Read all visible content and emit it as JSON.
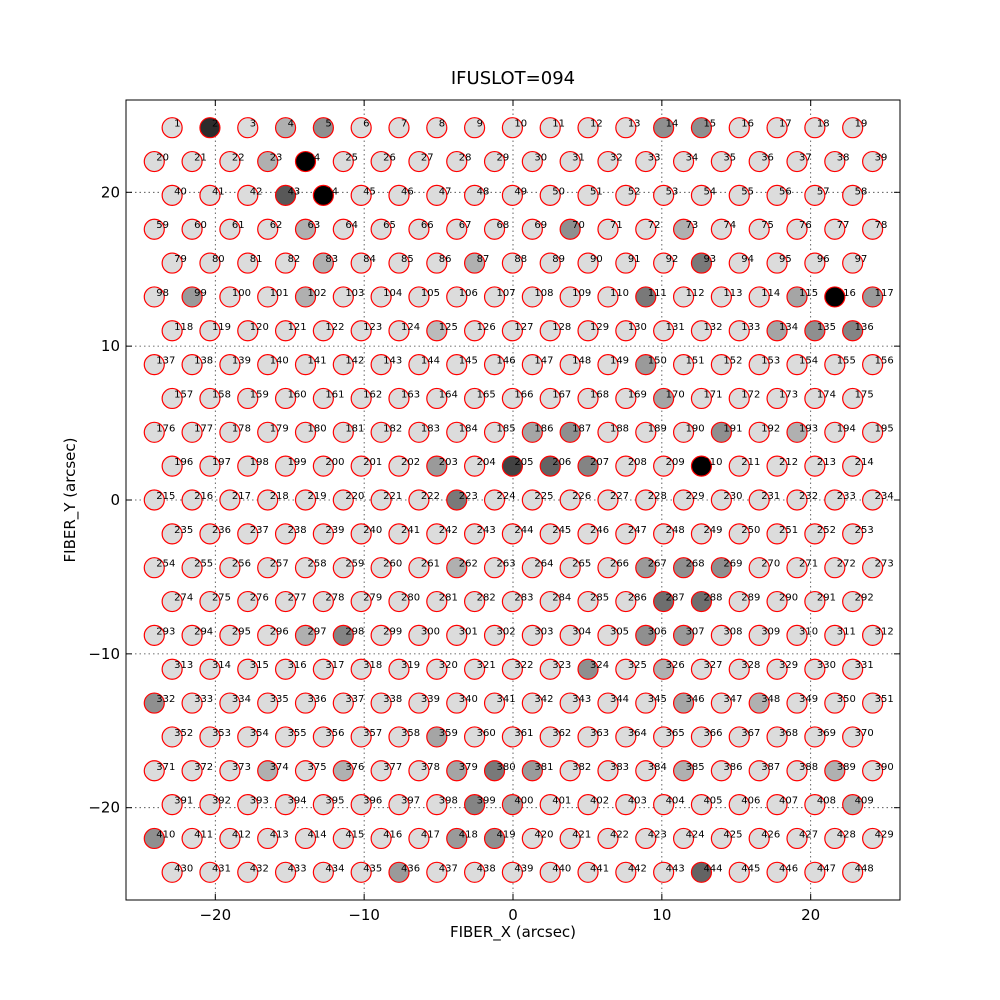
{
  "chart_data": {
    "type": "scatter",
    "title": "IFUSLOT=094",
    "xlabel": "FIBER_X (arcsec)",
    "ylabel": "FIBER_Y (arcsec)",
    "xlim": [
      -26,
      26
    ],
    "ylim": [
      -26,
      26
    ],
    "xticks": [
      -20,
      -10,
      0,
      10,
      20
    ],
    "yticks": [
      -20,
      -10,
      0,
      10,
      20
    ],
    "xtick_labels": [
      "−20",
      "−10",
      "0",
      "10",
      "20"
    ],
    "ytick_labels": [
      "−20",
      "−10",
      "0",
      "10",
      "20"
    ],
    "grid": true,
    "marker_edge_color": "#ff0000",
    "fill_scale": [
      "#dcdcdc",
      "#000000"
    ],
    "rows": [
      {
        "y": 24.2,
        "x0": -22.9,
        "count": 19,
        "start": 1
      },
      {
        "y": 22.0,
        "x0": -24.1,
        "count": 20,
        "start": 20
      },
      {
        "y": 19.8,
        "x0": -22.9,
        "count": 19,
        "start": 40
      },
      {
        "y": 17.6,
        "x0": -24.1,
        "count": 20,
        "start": 59
      },
      {
        "y": 15.4,
        "x0": -22.9,
        "count": 19,
        "start": 79
      },
      {
        "y": 13.2,
        "x0": -24.1,
        "count": 20,
        "start": 98
      },
      {
        "y": 11.0,
        "x0": -22.9,
        "count": 19,
        "start": 118
      },
      {
        "y": 8.8,
        "x0": -24.1,
        "count": 20,
        "start": 137
      },
      {
        "y": 6.6,
        "x0": -22.9,
        "count": 19,
        "start": 157
      },
      {
        "y": 4.4,
        "x0": -24.1,
        "count": 20,
        "start": 176
      },
      {
        "y": 2.2,
        "x0": -22.9,
        "count": 19,
        "start": 196
      },
      {
        "y": 0.0,
        "x0": -24.1,
        "count": 20,
        "start": 215
      },
      {
        "y": -2.2,
        "x0": -22.9,
        "count": 19,
        "start": 235
      },
      {
        "y": -4.4,
        "x0": -24.1,
        "count": 20,
        "start": 254
      },
      {
        "y": -6.6,
        "x0": -22.9,
        "count": 19,
        "start": 274
      },
      {
        "y": -8.8,
        "x0": -24.1,
        "count": 20,
        "start": 293
      },
      {
        "y": -11.0,
        "x0": -22.9,
        "count": 19,
        "start": 313
      },
      {
        "y": -13.2,
        "x0": -24.1,
        "count": 20,
        "start": 332
      },
      {
        "y": -15.4,
        "x0": -22.9,
        "count": 19,
        "start": 352
      },
      {
        "y": -17.6,
        "x0": -24.1,
        "count": 20,
        "start": 371
      },
      {
        "y": -19.8,
        "x0": -22.9,
        "count": 19,
        "start": 391
      },
      {
        "y": -22.0,
        "x0": -24.1,
        "count": 20,
        "start": 410
      },
      {
        "y": -24.2,
        "x0": -22.9,
        "count": 19,
        "start": 430
      }
    ],
    "fiber_spacing_x": 2.54,
    "shading": {
      "2": 0.8,
      "5": 0.35,
      "14": 0.35,
      "15": 0.35,
      "24": 1.0,
      "44": 1.0,
      "43": 0.6,
      "70": 0.35,
      "73": 0.2,
      "93": 0.45,
      "99": 0.3,
      "111": 0.45,
      "116": 1.0,
      "117": 0.3,
      "134": 0.25,
      "135": 0.35,
      "136": 0.4,
      "150": 0.3,
      "170": 0.25,
      "186": 0.25,
      "187": 0.35,
      "191": 0.35,
      "203": 0.3,
      "205": 0.7,
      "206": 0.55,
      "207": 0.4,
      "210": 1.0,
      "223": 0.45,
      "262": 0.2,
      "267": 0.3,
      "268": 0.35,
      "269": 0.35,
      "287": 0.5,
      "288": 0.5,
      "298": 0.4,
      "306": 0.35,
      "307": 0.3,
      "324": 0.35,
      "332": 0.35,
      "346": 0.25,
      "359": 0.25,
      "379": 0.25,
      "380": 0.45,
      "381": 0.3,
      "399": 0.4,
      "400": 0.25,
      "410": 0.35,
      "418": 0.3,
      "419": 0.35,
      "436": 0.3,
      "444": 0.55,
      "348": 0.2,
      "115": 0.25,
      "193": 0.2,
      "102": 0.2,
      "83": 0.2,
      "63": 0.2,
      "23": 0.2,
      "4": 0.2,
      "87": 0.2,
      "125": 0.15,
      "297": 0.2,
      "376": 0.2,
      "374": 0.2,
      "326": 0.2,
      "385": 0.2,
      "389": 0.2,
      "409": 0.2
    }
  }
}
